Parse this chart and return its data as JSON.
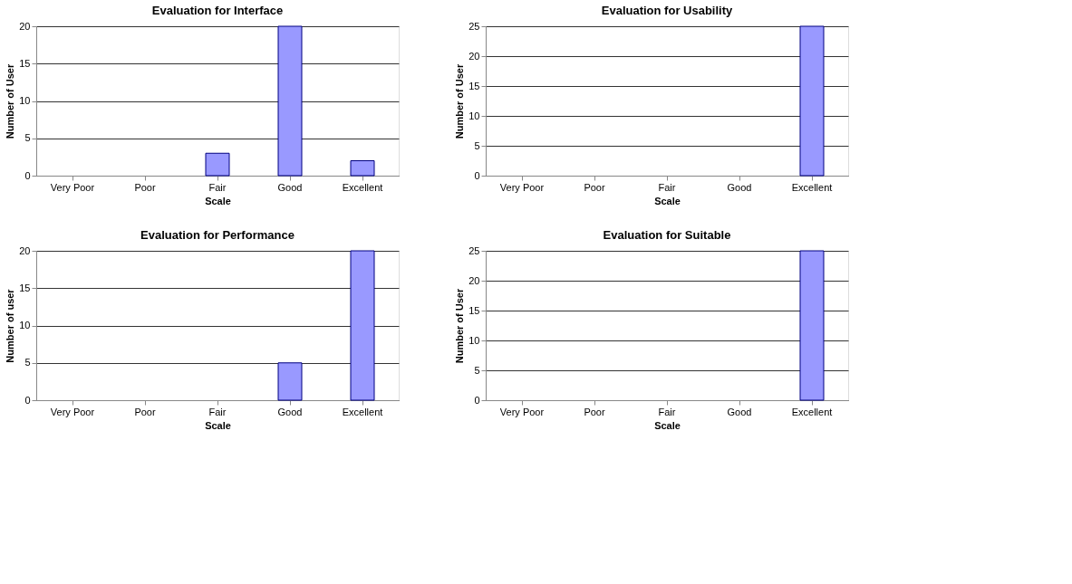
{
  "chart_data": [
    {
      "type": "bar",
      "title": "Evaluation for Interface",
      "xlabel": "Scale",
      "ylabel": "Number of User",
      "categories": [
        "Very Poor",
        "Poor",
        "Fair",
        "Good",
        "Excellent"
      ],
      "values": [
        0,
        0,
        3,
        20,
        2
      ],
      "color": "#9999ff",
      "ylim": [
        0,
        20
      ],
      "yticks": [
        0,
        5,
        10,
        15,
        20
      ],
      "grid": "y"
    },
    {
      "type": "bar",
      "title": "Evaluation for Usability",
      "xlabel": "Scale",
      "ylabel": "Number of User",
      "categories": [
        "Very Poor",
        "Poor",
        "Fair",
        "Good",
        "Excellent"
      ],
      "values": [
        0,
        0,
        0,
        0,
        25
      ],
      "color": "#9999ff",
      "ylim": [
        0,
        25
      ],
      "yticks": [
        0,
        5,
        10,
        15,
        20,
        25
      ],
      "grid": "y"
    },
    {
      "type": "bar",
      "title": "Evaluation for Performance",
      "xlabel": "Scale",
      "ylabel": "Number of user",
      "categories": [
        "Very Poor",
        "Poor",
        "Fair",
        "Good",
        "Excellent"
      ],
      "values": [
        0,
        0,
        0,
        5,
        20
      ],
      "color": "#9999ff",
      "ylim": [
        0,
        20
      ],
      "yticks": [
        0,
        5,
        10,
        15,
        20
      ],
      "grid": "y"
    },
    {
      "type": "bar",
      "title": "Evaluation for Suitable",
      "xlabel": "Scale",
      "ylabel": "Number of User",
      "categories": [
        "Very Poor",
        "Poor",
        "Fair",
        "Good",
        "Excellent"
      ],
      "values": [
        0,
        0,
        0,
        0,
        25
      ],
      "color": "#9999ff",
      "ylim": [
        0,
        25
      ],
      "yticks": [
        0,
        5,
        10,
        15,
        20,
        25
      ],
      "grid": "y"
    }
  ]
}
